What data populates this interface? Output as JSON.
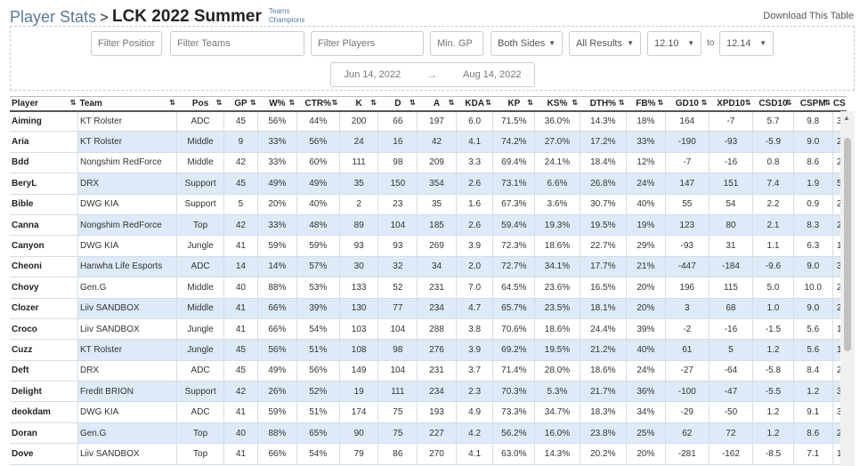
{
  "header": {
    "crumb": "Player Stats",
    "separator": ">",
    "title": "LCK 2022 Summer",
    "sublinks": [
      "Teams",
      "Champions"
    ],
    "download": "Download This Table"
  },
  "filters": {
    "positions": "Filter Positions",
    "teams": "Filter Teams",
    "players": "Filter Players",
    "min_gp": "Min. GP",
    "sides": "Both Sides",
    "results": "All Results",
    "patch_from": "12.10",
    "to": "to",
    "patch_to": "12.14",
    "date_start": "Jun 14, 2022",
    "date_arrow": "→",
    "date_end": "Aug 14, 2022"
  },
  "table": {
    "columns": [
      "Player",
      "Team",
      "Pos",
      "GP",
      "W%",
      "CTR%",
      "K",
      "D",
      "A",
      "KDA",
      "KP",
      "KS%",
      "DTH%",
      "FB%",
      "GD10",
      "XPD10",
      "CSD10",
      "CSPM",
      "CS"
    ],
    "rows": [
      [
        "Aiming",
        "KT Rolster",
        "ADC",
        "45",
        "56%",
        "44%",
        "200",
        "66",
        "197",
        "6.0",
        "71.5%",
        "36.0%",
        "14.3%",
        "18%",
        "164",
        "-7",
        "5.7",
        "9.8",
        "3"
      ],
      [
        "Aria",
        "KT Rolster",
        "Middle",
        "9",
        "33%",
        "56%",
        "24",
        "16",
        "42",
        "4.1",
        "74.2%",
        "27.0%",
        "17.2%",
        "33%",
        "-190",
        "-93",
        "-5.9",
        "9.0",
        "2"
      ],
      [
        "Bdd",
        "Nongshim RedForce",
        "Middle",
        "42",
        "33%",
        "60%",
        "111",
        "98",
        "209",
        "3.3",
        "69.4%",
        "24.1%",
        "18.4%",
        "12%",
        "-7",
        "-16",
        "0.8",
        "8.6",
        "2"
      ],
      [
        "BeryL",
        "DRX",
        "Support",
        "45",
        "49%",
        "49%",
        "35",
        "150",
        "354",
        "2.6",
        "73.1%",
        "6.6%",
        "26.8%",
        "24%",
        "147",
        "151",
        "7.4",
        "1.9",
        "5"
      ],
      [
        "Bible",
        "DWG KIA",
        "Support",
        "5",
        "20%",
        "40%",
        "2",
        "23",
        "35",
        "1.6",
        "67.3%",
        "3.6%",
        "30.7%",
        "40%",
        "55",
        "54",
        "2.2",
        "0.9",
        "2"
      ],
      [
        "Canna",
        "Nongshim RedForce",
        "Top",
        "42",
        "33%",
        "48%",
        "89",
        "104",
        "185",
        "2.6",
        "59.4%",
        "19.3%",
        "19.5%",
        "19%",
        "123",
        "80",
        "2.1",
        "8.3",
        "2"
      ],
      [
        "Canyon",
        "DWG KIA",
        "Jungle",
        "41",
        "59%",
        "59%",
        "93",
        "93",
        "269",
        "3.9",
        "72.3%",
        "18.6%",
        "22.7%",
        "29%",
        "-93",
        "31",
        "1.1",
        "6.3",
        "1"
      ],
      [
        "Cheoni",
        "Hanwha Life Esports",
        "ADC",
        "14",
        "14%",
        "57%",
        "30",
        "32",
        "34",
        "2.0",
        "72.7%",
        "34.1%",
        "17.7%",
        "21%",
        "-447",
        "-184",
        "-9.6",
        "9.0",
        "3"
      ],
      [
        "Chovy",
        "Gen.G",
        "Middle",
        "40",
        "88%",
        "53%",
        "133",
        "52",
        "231",
        "7.0",
        "64.5%",
        "23.6%",
        "16.5%",
        "20%",
        "196",
        "115",
        "5.0",
        "10.0",
        "2"
      ],
      [
        "Clozer",
        "Liiv SANDBOX",
        "Middle",
        "41",
        "66%",
        "39%",
        "130",
        "77",
        "234",
        "4.7",
        "65.7%",
        "23.5%",
        "18.1%",
        "20%",
        "3",
        "68",
        "1.0",
        "9.0",
        "2"
      ],
      [
        "Croco",
        "Liiv SANDBOX",
        "Jungle",
        "41",
        "66%",
        "54%",
        "103",
        "104",
        "288",
        "3.8",
        "70.6%",
        "18.6%",
        "24.4%",
        "39%",
        "-2",
        "-16",
        "-1.5",
        "5.6",
        "1"
      ],
      [
        "Cuzz",
        "KT Rolster",
        "Jungle",
        "45",
        "56%",
        "51%",
        "108",
        "98",
        "276",
        "3.9",
        "69.2%",
        "19.5%",
        "21.2%",
        "40%",
        "61",
        "5",
        "1.2",
        "5.6",
        "1"
      ],
      [
        "Deft",
        "DRX",
        "ADC",
        "45",
        "49%",
        "56%",
        "149",
        "104",
        "231",
        "3.7",
        "71.4%",
        "28.0%",
        "18.6%",
        "24%",
        "-27",
        "-64",
        "-5.8",
        "8.4",
        "2"
      ],
      [
        "Delight",
        "Fredit BRION",
        "Support",
        "42",
        "26%",
        "52%",
        "19",
        "111",
        "234",
        "2.3",
        "70.3%",
        "5.3%",
        "21.7%",
        "36%",
        "-100",
        "-47",
        "-5.5",
        "1.2",
        "3"
      ],
      [
        "deokdam",
        "DWG KIA",
        "ADC",
        "41",
        "59%",
        "51%",
        "174",
        "75",
        "193",
        "4.9",
        "73.3%",
        "34.7%",
        "18.3%",
        "34%",
        "-29",
        "-50",
        "1.2",
        "9.1",
        "3"
      ],
      [
        "Doran",
        "Gen.G",
        "Top",
        "40",
        "88%",
        "65%",
        "90",
        "75",
        "227",
        "4.2",
        "56.2%",
        "16.0%",
        "23.8%",
        "25%",
        "62",
        "72",
        "1.2",
        "8.6",
        "2"
      ],
      [
        "Dove",
        "Liiv SANDBOX",
        "Top",
        "41",
        "66%",
        "54%",
        "79",
        "86",
        "270",
        "4.1",
        "63.0%",
        "14.3%",
        "20.2%",
        "20%",
        "-281",
        "-162",
        "-8.5",
        "7.1",
        "1"
      ]
    ]
  },
  "icons": {
    "sort": "⇅",
    "caret": "▼"
  }
}
